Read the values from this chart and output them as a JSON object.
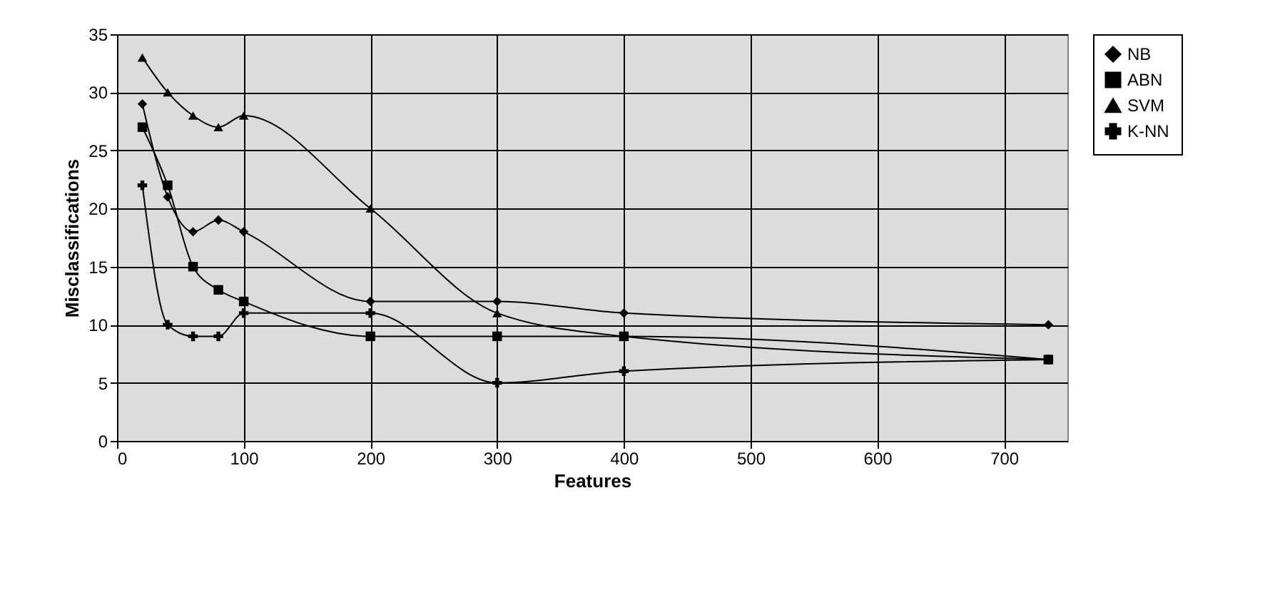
{
  "chart_data": {
    "type": "line",
    "xlabel": "Features",
    "ylabel": "Misclassifications",
    "xlim": [
      0,
      750
    ],
    "xticks": [
      0,
      100,
      200,
      300,
      400,
      500,
      600,
      700
    ],
    "ylim": [
      0,
      35
    ],
    "yticks": [
      0,
      5,
      10,
      15,
      20,
      25,
      30,
      35
    ],
    "grid": true,
    "legend": "right",
    "line_style": "solid",
    "x": [
      20,
      40,
      60,
      80,
      100,
      200,
      300,
      400,
      735
    ],
    "series": [
      {
        "name": "NB",
        "color": "#000000",
        "marker": "diamond",
        "values": [
          29,
          21,
          18,
          19,
          18,
          12,
          12,
          11,
          10
        ]
      },
      {
        "name": "ABN",
        "color": "#000000",
        "marker": "square",
        "values": [
          27,
          22,
          15,
          13,
          12,
          9,
          9,
          9,
          7
        ]
      },
      {
        "name": "SVM",
        "color": "#000000",
        "marker": "triangle",
        "values": [
          33,
          30,
          28,
          27,
          28,
          20,
          11,
          9,
          7
        ]
      },
      {
        "name": "K-NN",
        "color": "#000000",
        "marker": "cross",
        "values": [
          22,
          10,
          9,
          9,
          11,
          11,
          5,
          6,
          7
        ]
      }
    ]
  }
}
